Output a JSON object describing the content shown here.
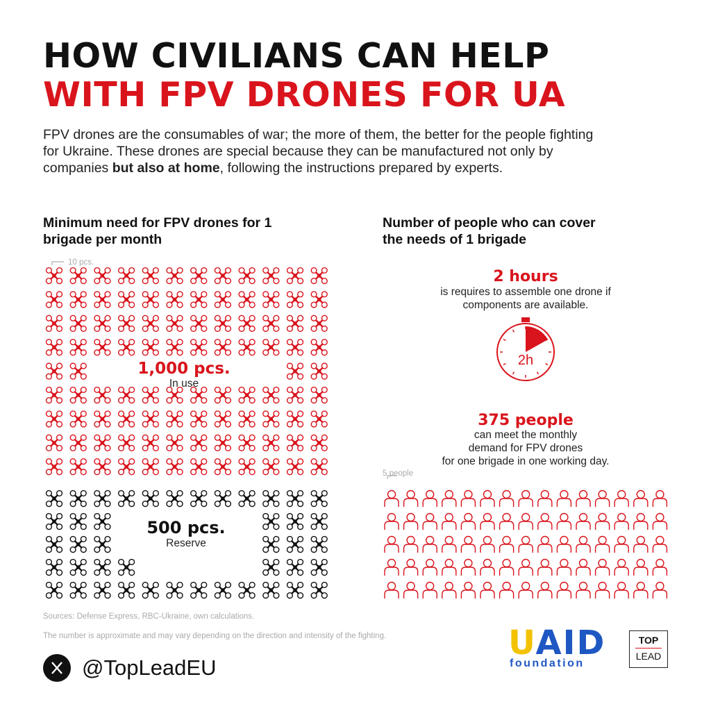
{
  "header": {
    "title_line1": "HOW CIVILIANS CAN HELP",
    "title_line2": "WITH FPV DRONES FOR UA",
    "intro": [
      "FPV drones are the consumables of war; the more of them, the better for the people fighting for Ukraine. These drones are special because they can be manufactured not only by companies ",
      "but also at home",
      ", following the instructions prepared by experts."
    ]
  },
  "left": {
    "heading": "Minimum need for FPV drones for 1 brigade per month",
    "legend": "10 pcs.",
    "in_use_value": "1,000 pcs.",
    "in_use_label": "In use",
    "reserve_value": "500 pcs.",
    "reserve_label": "Reserve"
  },
  "right": {
    "heading": "Number of people who can cover the needs of 1 brigade",
    "hours_value": "2 hours",
    "hours_text": "is requires to assemble one drone if components are available.",
    "clock_label": "2h",
    "people_value": "375 people",
    "people_text": [
      "can meet the monthly",
      "demand for FPV drones",
      "for one brigade in one working day."
    ],
    "legend": "5 people"
  },
  "footer": {
    "sources": "Sources: Defense Express, RBC-Ukraine, own calculations.",
    "note": "The number is approximate and may vary depending on the direction and intensity of the fighting.",
    "handle": "@TopLeadEU",
    "logo1": "UAID",
    "logo1_sub": "foundation",
    "logo2_top": "TOP",
    "logo2_bottom": "LEAD"
  }
}
